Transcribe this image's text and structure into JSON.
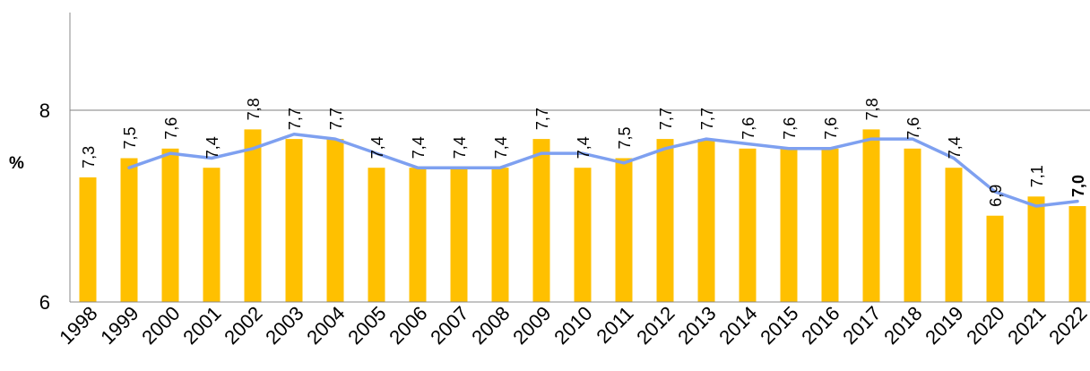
{
  "chart_data": {
    "type": "bar",
    "title": "",
    "xlabel": "",
    "ylabel": "%",
    "ylim": [
      6,
      9
    ],
    "yticks": [
      "6",
      "8"
    ],
    "grid": "horizontal at 8",
    "legend": "none",
    "categories": [
      "1998",
      "1999",
      "2000",
      "2001",
      "2002",
      "2003",
      "2004",
      "2005",
      "2006",
      "2007",
      "2008",
      "2009",
      "2010",
      "2011",
      "2012",
      "2013",
      "2014",
      "2015",
      "2016",
      "2017",
      "2018",
      "2019",
      "2020",
      "2021",
      "2022"
    ],
    "series": [
      {
        "type": "bar",
        "color": "#ffc000",
        "values": [
          7.3,
          7.5,
          7.6,
          7.4,
          7.8,
          7.7,
          7.7,
          7.4,
          7.4,
          7.4,
          7.4,
          7.7,
          7.4,
          7.5,
          7.7,
          7.7,
          7.6,
          7.6,
          7.6,
          7.8,
          7.6,
          7.4,
          6.9,
          7.1,
          7.0
        ],
        "data_labels": [
          "7,3",
          "7,5",
          "7,6",
          "7,4",
          "7,8",
          "7,7",
          "7,7",
          "7,4",
          "7,4",
          "7,4",
          "7,4",
          "7,7",
          "7,4",
          "7,5",
          "7,7",
          "7,7",
          "7,6",
          "7,6",
          "7,6",
          "7,8",
          "7,6",
          "7,4",
          "6,9",
          "7,1",
          "7,0"
        ]
      },
      {
        "type": "line",
        "color": "#7ea0f0",
        "values": [
          null,
          7.4,
          7.55,
          7.5,
          7.6,
          7.75,
          7.7,
          7.55,
          7.4,
          7.4,
          7.4,
          7.55,
          7.55,
          7.45,
          7.6,
          7.7,
          7.65,
          7.6,
          7.6,
          7.7,
          7.7,
          7.5,
          7.15,
          7.0,
          7.05
        ]
      }
    ]
  }
}
